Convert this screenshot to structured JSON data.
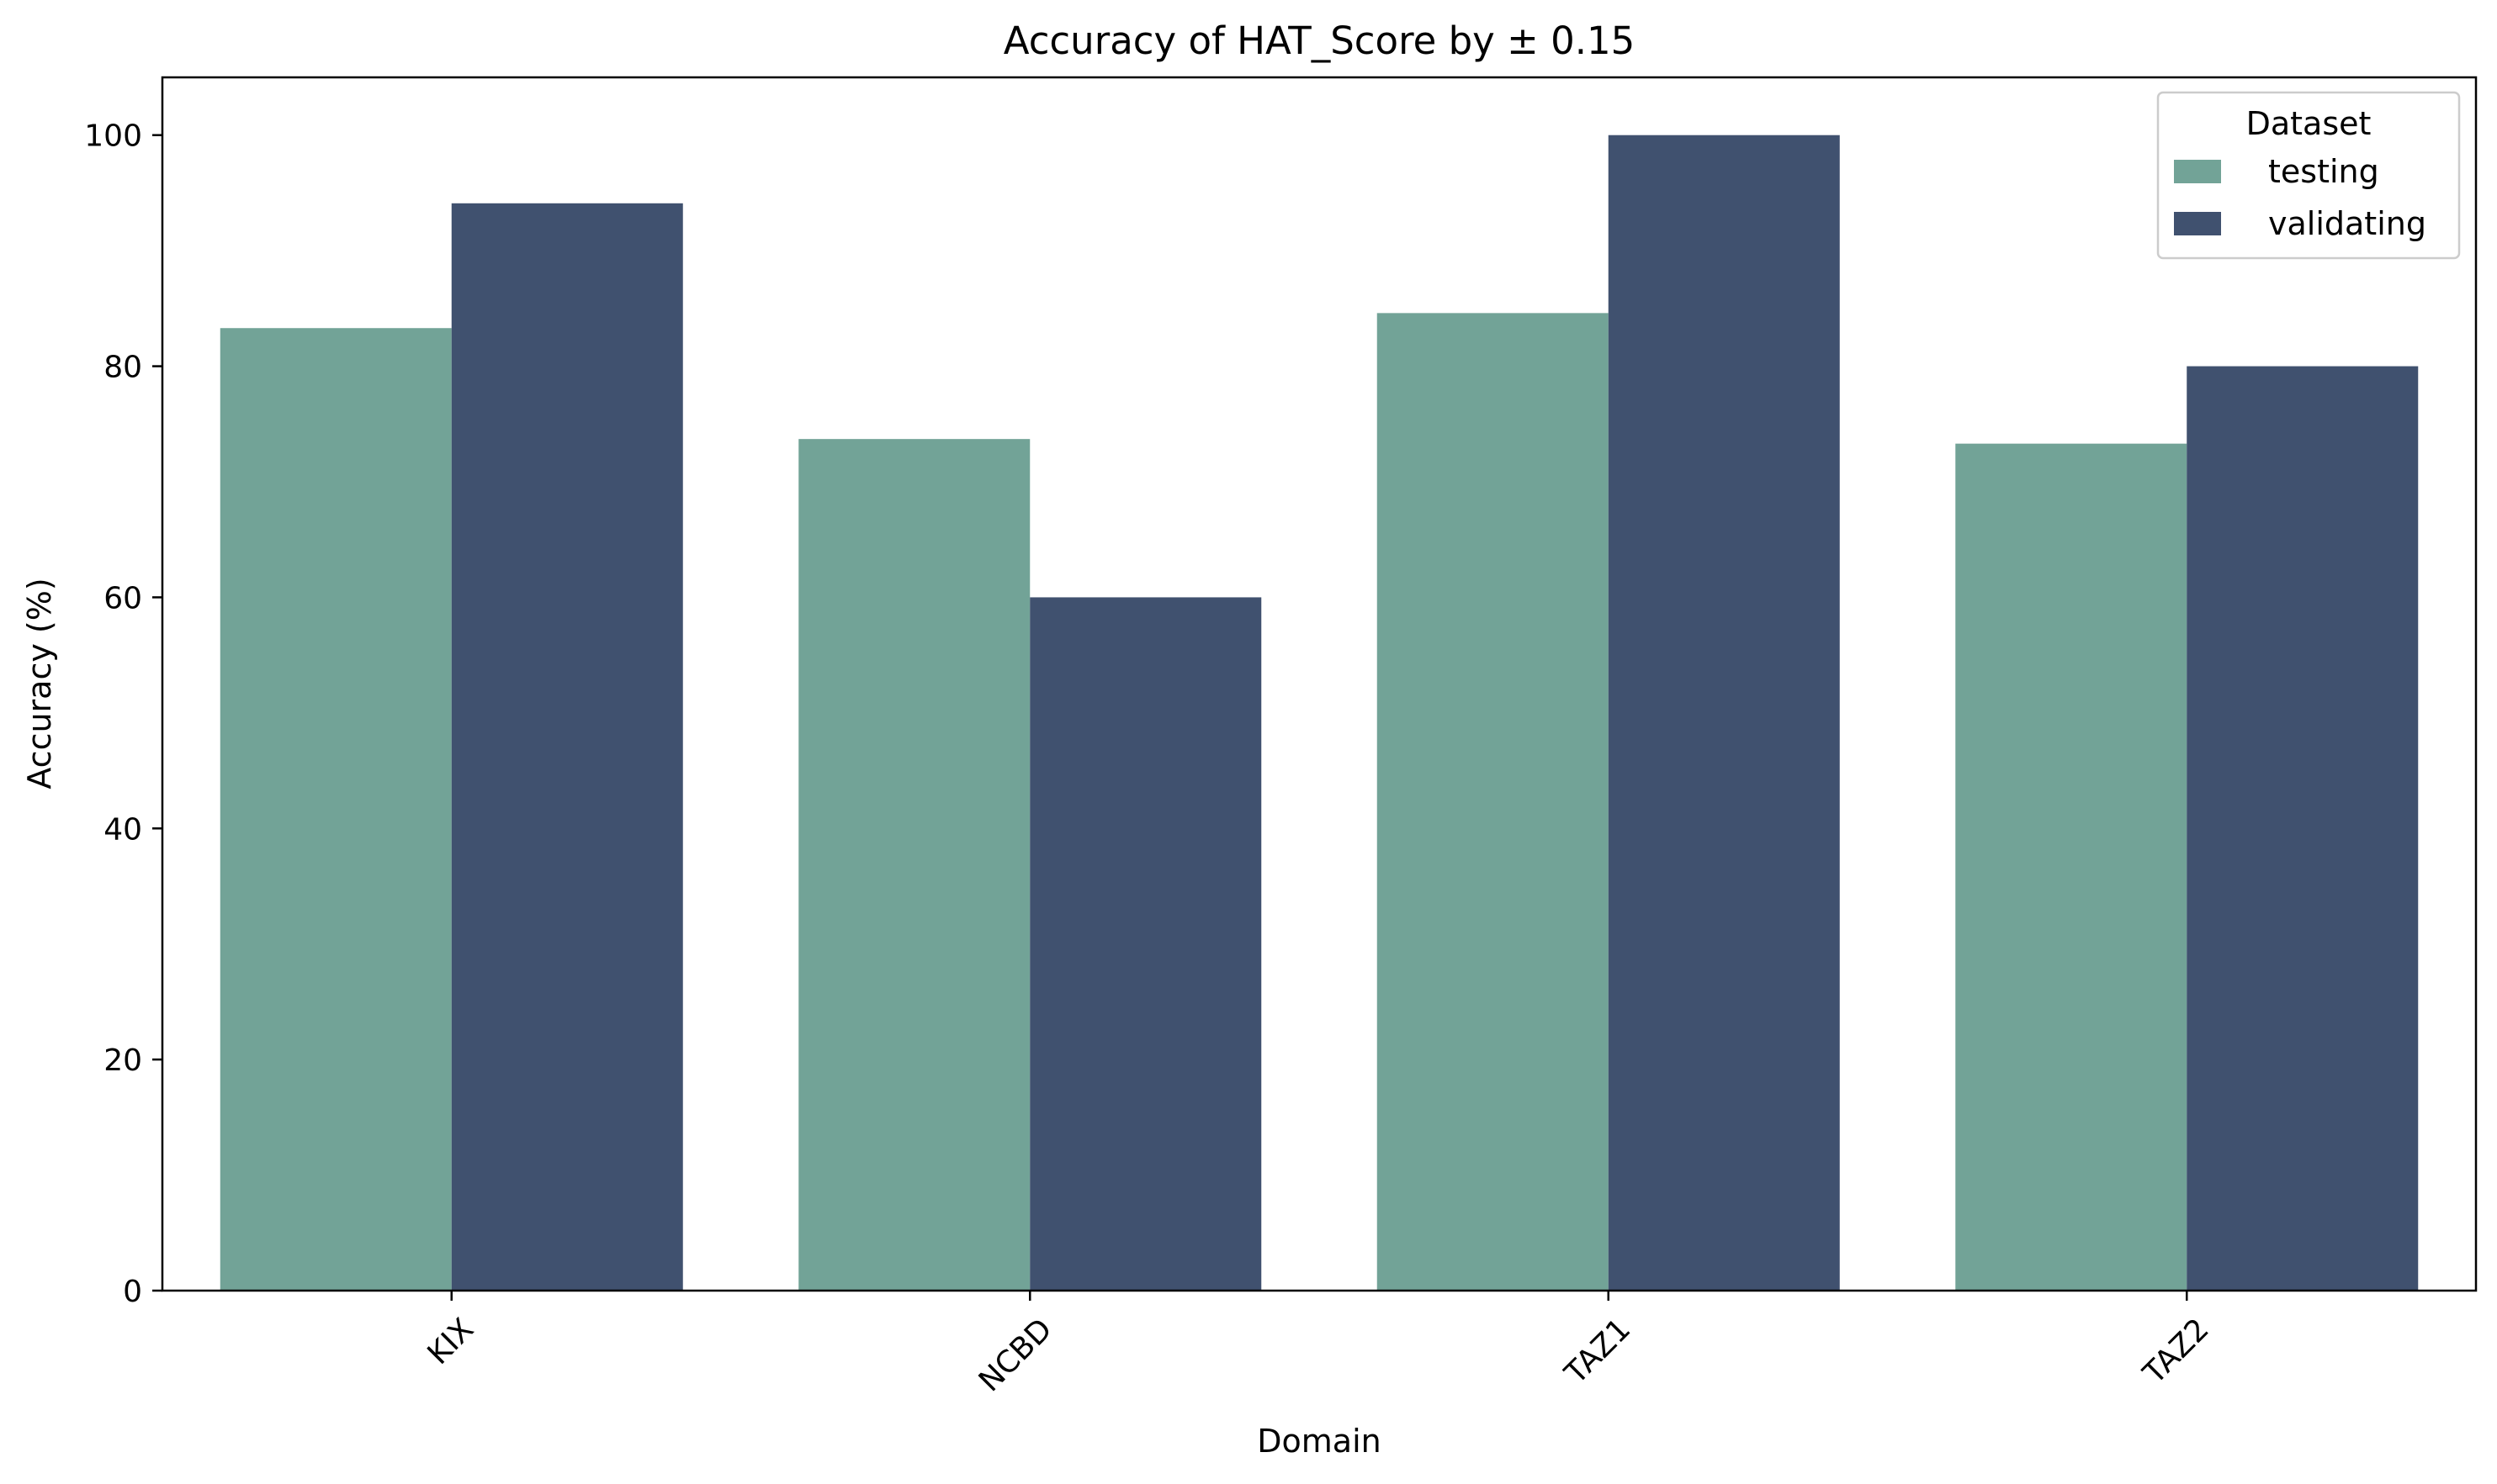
{
  "chart_data": {
    "type": "bar",
    "title": "Accuracy of HAT_Score by ± 0.15",
    "xlabel": "Domain",
    "ylabel": "Accuracy (%)",
    "categories": [
      "KIX",
      "NCBD",
      "TAZ1",
      "TAZ2"
    ],
    "series": [
      {
        "name": "testing",
        "color": "#72a397",
        "values": [
          83.3,
          73.7,
          84.6,
          73.3
        ]
      },
      {
        "name": "validating",
        "color": "#40516f",
        "values": [
          94.1,
          60.0,
          100.0,
          80.0
        ]
      }
    ],
    "ylim": [
      0,
      105
    ],
    "yticks": [
      0,
      20,
      40,
      60,
      80,
      100
    ],
    "grid": false,
    "legend": {
      "title": "Dataset",
      "position": "top-right"
    },
    "xtick_rotation": 45
  }
}
